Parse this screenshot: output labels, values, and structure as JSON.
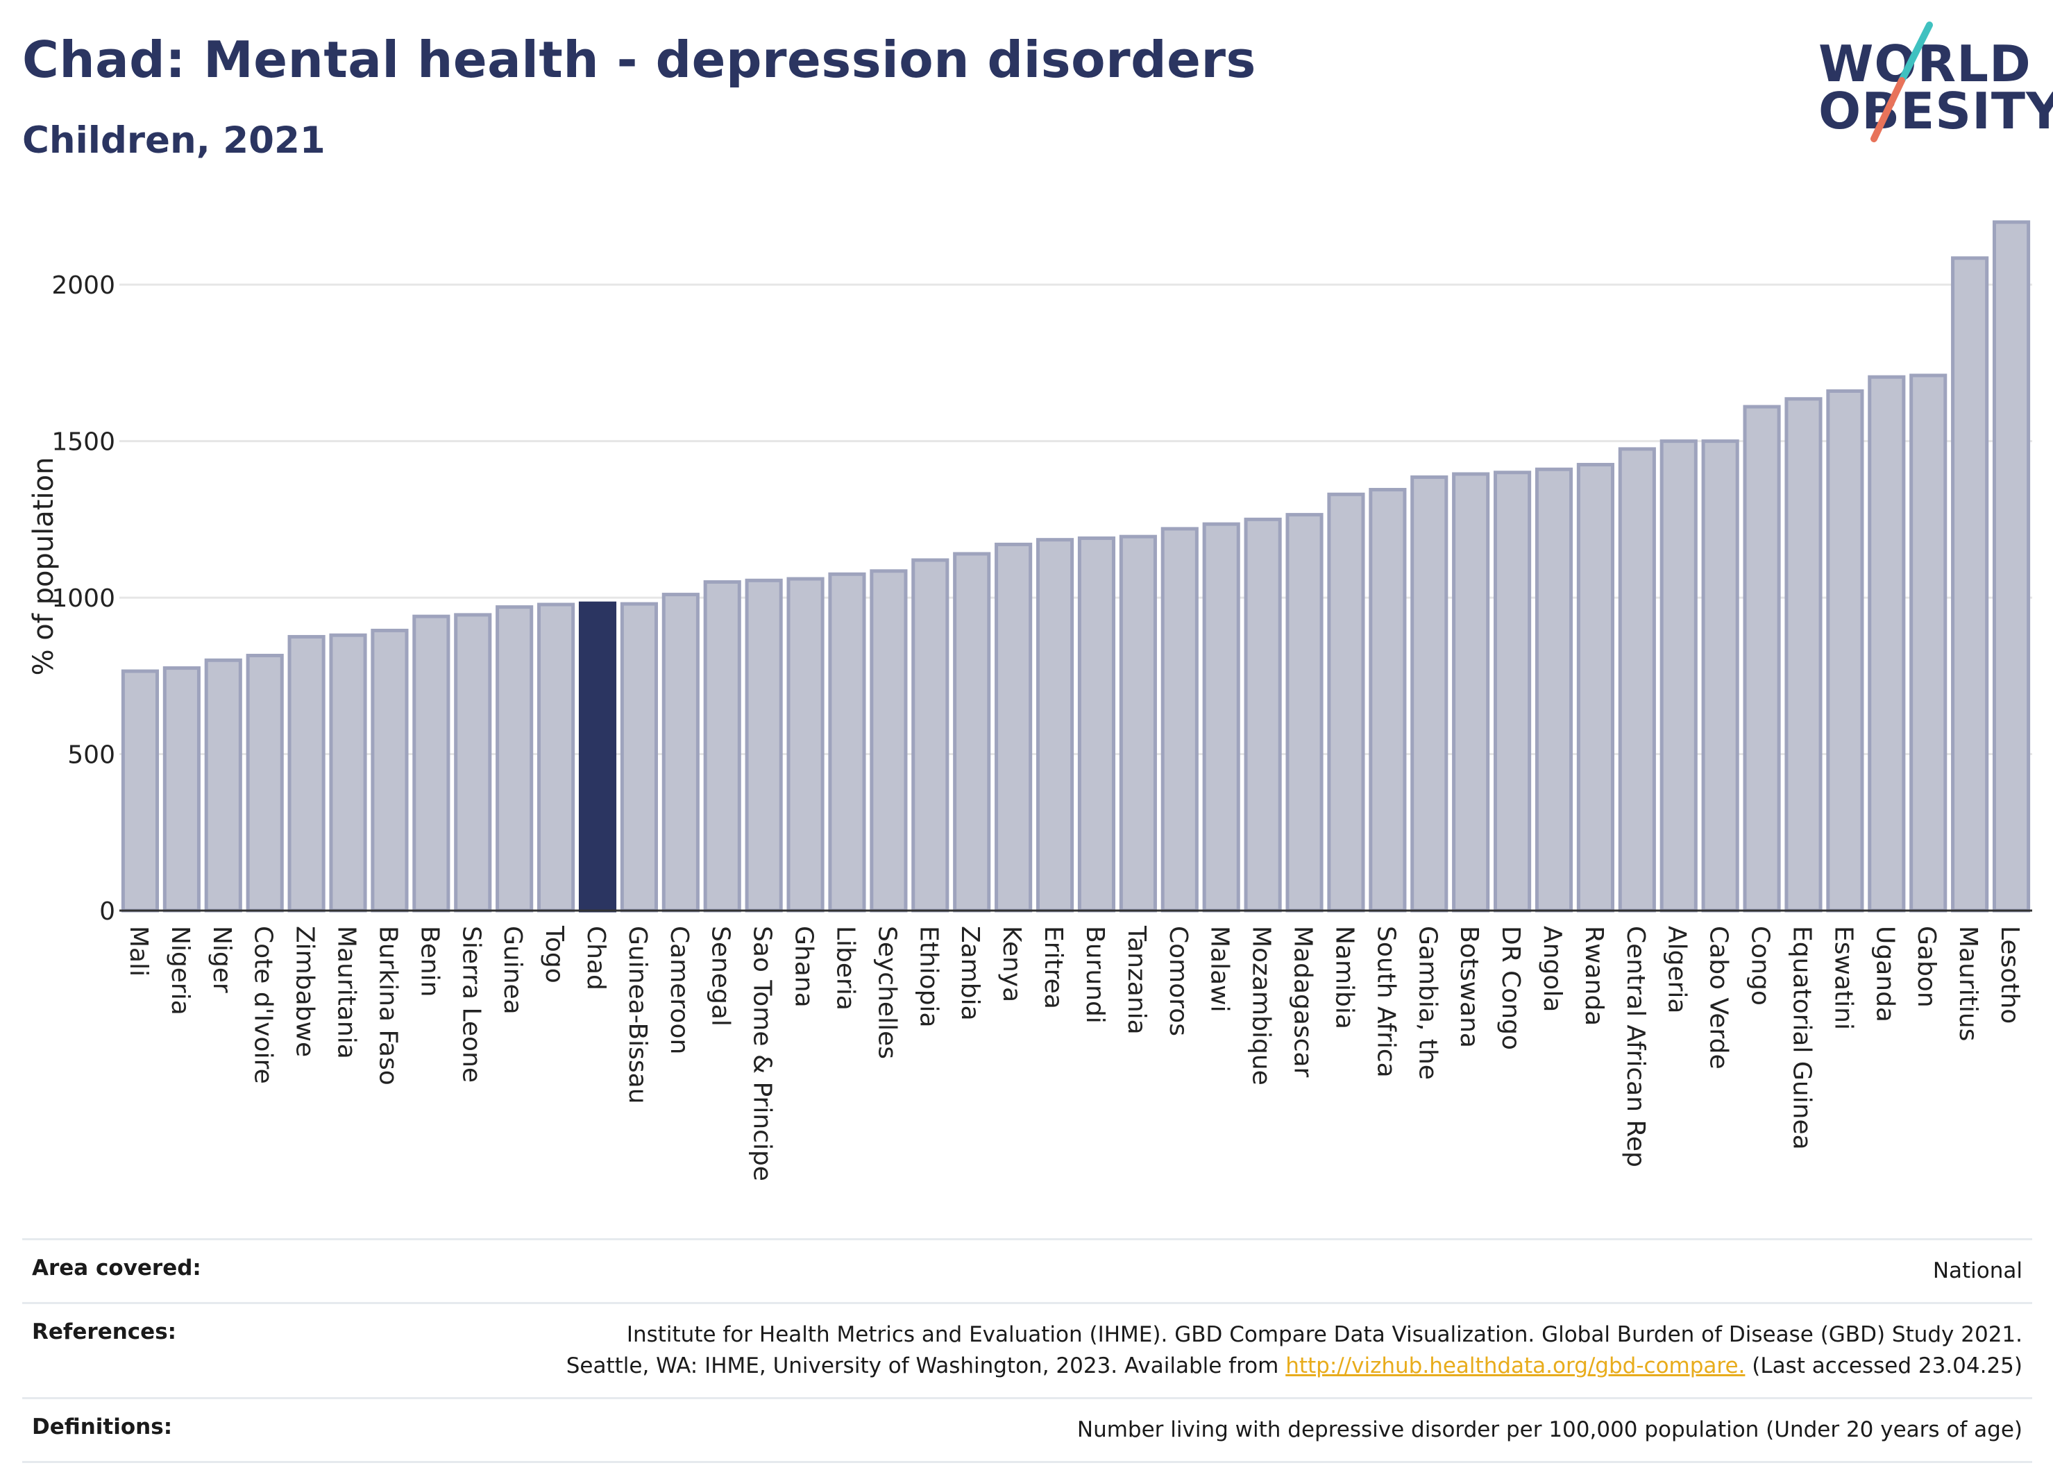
{
  "header": {
    "title": "Chad: Mental health - depression disorders",
    "subtitle": "Children, 2021"
  },
  "logo": {
    "line1": "WORLD",
    "line2": "OBESITY"
  },
  "colors": {
    "highlight": "#2b3561",
    "bar_fill": "#bfc2d0",
    "bar_stroke": "#9ea3bd",
    "grid": "#e6e6e6",
    "accent_teal": "#3fc1c0",
    "accent_coral": "#e8735a",
    "link": "#e8ac1c"
  },
  "chart_data": {
    "type": "bar",
    "ylabel": "% of population",
    "xlabel": "",
    "ylim": [
      0,
      2200
    ],
    "yticks": [
      0,
      500,
      1000,
      1500,
      2000
    ],
    "grid": true,
    "highlight": "Chad",
    "categories": [
      "Mali",
      "Nigeria",
      "Niger",
      "Cote d'Ivoire",
      "Zimbabwe",
      "Mauritania",
      "Burkina Faso",
      "Benin",
      "Sierra Leone",
      "Guinea",
      "Togo",
      "Chad",
      "Guinea-Bissau",
      "Cameroon",
      "Senegal",
      "Sao Tome & Principe",
      "Ghana",
      "Liberia",
      "Seychelles",
      "Ethiopia",
      "Zambia",
      "Kenya",
      "Eritrea",
      "Burundi",
      "Tanzania",
      "Comoros",
      "Malawi",
      "Mozambique",
      "Madagascar",
      "Namibia",
      "South Africa",
      "Gambia, the",
      "Botswana",
      "DR Congo",
      "Angola",
      "Rwanda",
      "Central African Rep",
      "Algeria",
      "Cabo Verde",
      "Congo",
      "Equatorial Guinea",
      "Eswatini",
      "Uganda",
      "Gabon",
      "Mauritius",
      "Lesotho"
    ],
    "values": [
      765,
      775,
      800,
      815,
      875,
      880,
      895,
      940,
      945,
      970,
      978,
      982,
      980,
      1010,
      1050,
      1055,
      1060,
      1075,
      1085,
      1120,
      1140,
      1170,
      1185,
      1190,
      1195,
      1220,
      1235,
      1250,
      1265,
      1330,
      1345,
      1385,
      1395,
      1400,
      1410,
      1425,
      1475,
      1500,
      1500,
      1610,
      1635,
      1660,
      1705,
      1710,
      2085,
      2200
    ]
  },
  "info": {
    "area_label": "Area covered:",
    "area_value": "National",
    "references_label": "References:",
    "references_line1": "Institute for Health Metrics and Evaluation (IHME). GBD Compare Data Visualization. Global Burden of Disease (GBD) Study 2021.",
    "references_line2_pre": "Seattle, WA: IHME, University of Washington, 2023. Available from ",
    "references_link": "http://vizhub.healthdata.org/gbd-compare.",
    "references_line2_post": " (Last accessed 23.04.25)",
    "definitions_label": "Definitions:",
    "definitions_value": "Number living with depressive disorder per 100,000 population (Under 20 years of age)"
  }
}
